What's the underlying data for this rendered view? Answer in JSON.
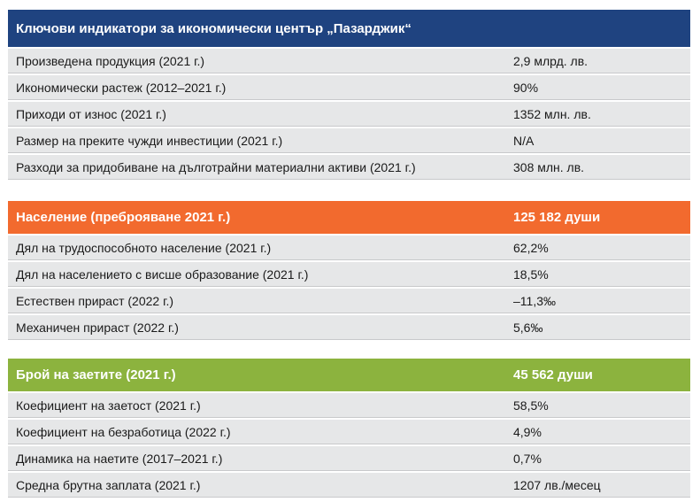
{
  "economy": {
    "title": "Ключови индикатори за икономически център „Пазарджик“",
    "rows": [
      {
        "label": "Произведена продукция (2021 г.)",
        "value": "2,9 млрд. лв."
      },
      {
        "label": "Икономически растеж (2012–2021 г.)",
        "value": "90%"
      },
      {
        "label": "Приходи от износ (2021 г.)",
        "value": "1352 млн. лв."
      },
      {
        "label": "Размер на преките чужди инвестиции (2021 г.)",
        "value": "N/A"
      },
      {
        "label": "Разходи за придобиване на дълготрайни материални активи (2021 г.)",
        "value": "308 млн. лв."
      }
    ]
  },
  "population": {
    "title": "Население (преброяване 2021 г.)",
    "value": "125 182 души",
    "rows": [
      {
        "label": "Дял на трудоспособното население (2021 г.)",
        "value": "62,2%"
      },
      {
        "label": "Дял на населението с висше образование (2021 г.)",
        "value": "18,5%"
      },
      {
        "label": "Естествен прираст (2022 г.)",
        "value": "–11,3‰"
      },
      {
        "label": "Механичен прираст (2022 г.)",
        "value": "5,6‰"
      }
    ]
  },
  "employment": {
    "title": "Брой на заетите (2021 г.)",
    "value": "45 562 души",
    "rows": [
      {
        "label": "Коефициент на заетост (2021 г.)",
        "value": "58,5%"
      },
      {
        "label": "Коефициент на безработица (2022 г.)",
        "value": "4,9%"
      },
      {
        "label": "Динамика на наетите (2017–2021 г.)",
        "value": "0,7%"
      },
      {
        "label": "Средна брутна заплата (2021 г.)",
        "value": "1207 лв./месец"
      }
    ]
  },
  "colors": {
    "economy_header": "#1f4380",
    "population_header": "#f26a2e",
    "employment_header": "#8cb33e",
    "row_background": "#e6e7e8"
  }
}
